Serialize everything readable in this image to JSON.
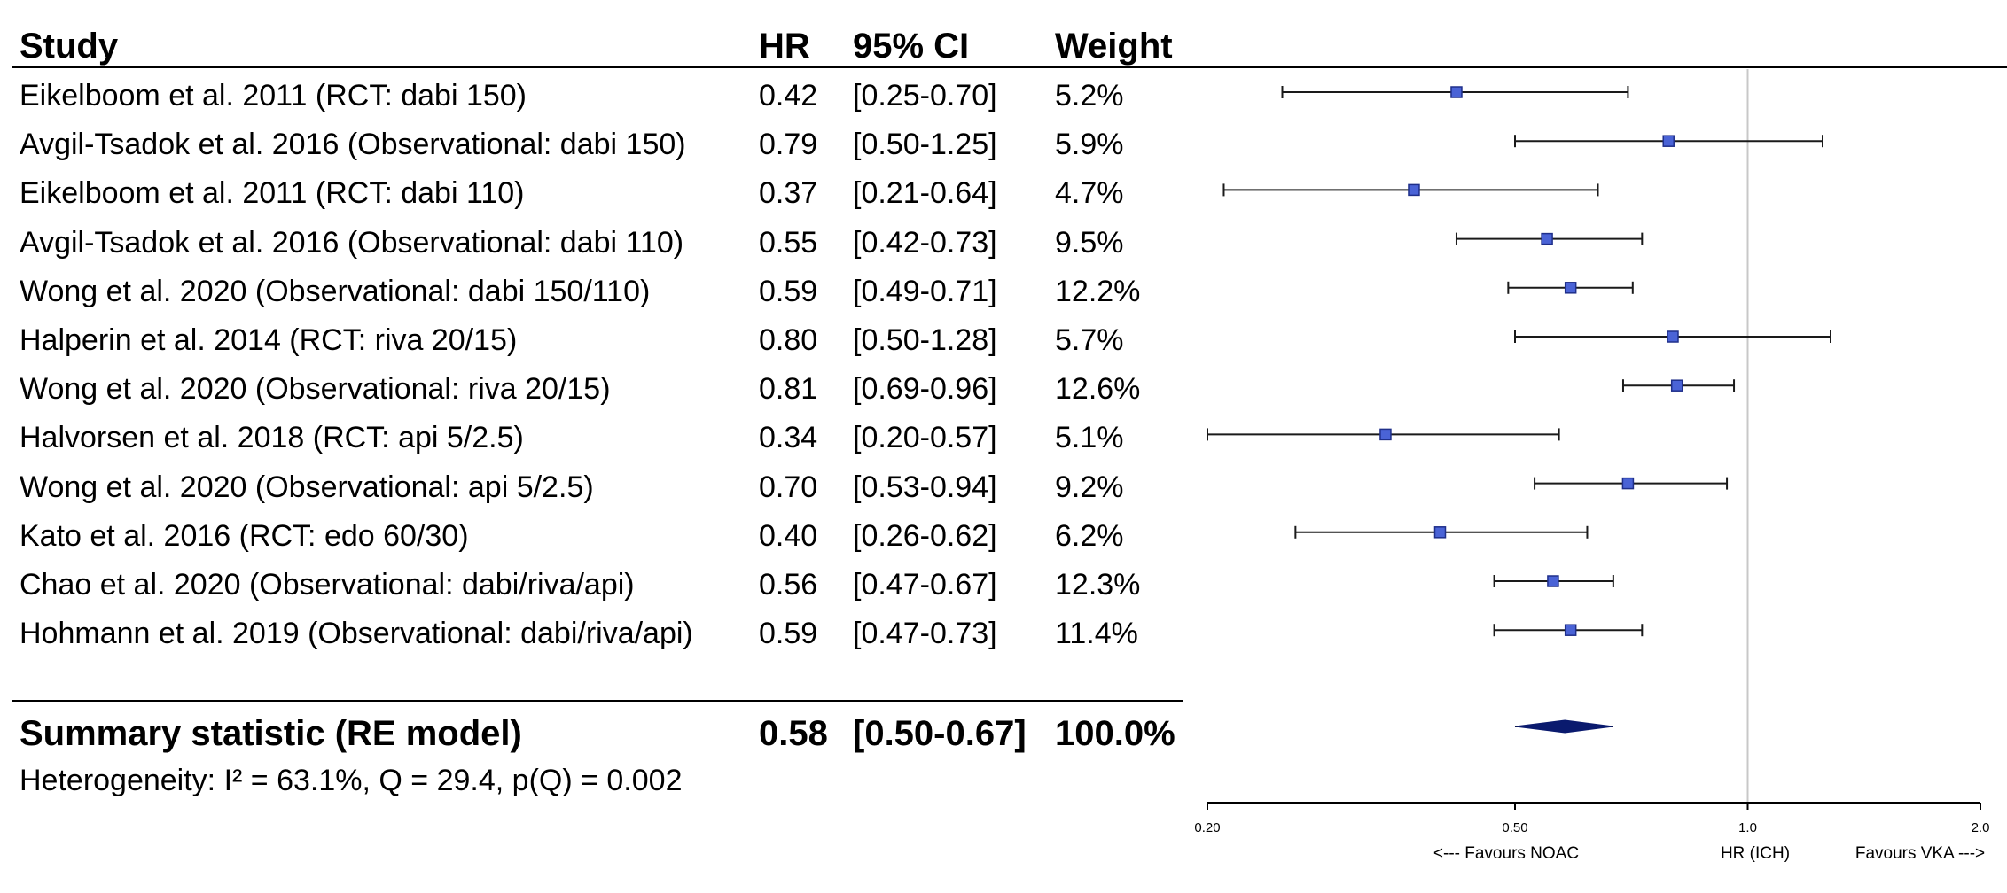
{
  "table": {
    "headers": {
      "study": "Study",
      "hr": "HR",
      "ci": "95% CI",
      "weight": "Weight"
    },
    "rows": [
      {
        "study": "Eikelboom et al. 2011 (RCT: dabi 150)",
        "hr": "0.42",
        "ci": "[0.25-0.70]",
        "weight": "5.2%"
      },
      {
        "study": "Avgil-Tsadok et al. 2016 (Observational: dabi 150)",
        "hr": "0.79",
        "ci": "[0.50-1.25]",
        "weight": "5.9%"
      },
      {
        "study": "Eikelboom et al. 2011 (RCT: dabi 110)",
        "hr": "0.37",
        "ci": "[0.21-0.64]",
        "weight": "4.7%"
      },
      {
        "study": "Avgil-Tsadok et al. 2016 (Observational: dabi 110)",
        "hr": "0.55",
        "ci": "[0.42-0.73]",
        "weight": "9.5%"
      },
      {
        "study": "Wong et al. 2020 (Observational: dabi 150/110)",
        "hr": "0.59",
        "ci": "[0.49-0.71]",
        "weight": "12.2%"
      },
      {
        "study": "Halperin et al. 2014 (RCT: riva 20/15)",
        "hr": "0.80",
        "ci": "[0.50-1.28]",
        "weight": "5.7%"
      },
      {
        "study": "Wong et al. 2020 (Observational: riva 20/15)",
        "hr": "0.81",
        "ci": "[0.69-0.96]",
        "weight": "12.6%"
      },
      {
        "study": "Halvorsen et al. 2018 (RCT: api 5/2.5)",
        "hr": "0.34",
        "ci": "[0.20-0.57]",
        "weight": "5.1%"
      },
      {
        "study": "Wong et al. 2020 (Observational: api 5/2.5)",
        "hr": "0.70",
        "ci": "[0.53-0.94]",
        "weight": "9.2%"
      },
      {
        "study": "Kato et al. 2016  (RCT: edo 60/30)",
        "hr": "0.40",
        "ci": "[0.26-0.62]",
        "weight": "6.2%"
      },
      {
        "study": "Chao et al. 2020 (Observational: dabi/riva/api)",
        "hr": "0.56",
        "ci": "[0.47-0.67]",
        "weight": "12.3%"
      },
      {
        "study": "Hohmann et al. 2019 (Observational: dabi/riva/api)",
        "hr": "0.59",
        "ci": "[0.47-0.73]",
        "weight": "11.4%"
      }
    ],
    "summary": {
      "label": "Summary statistic (RE model)",
      "hr": "0.58",
      "ci": "[0.50-0.67]",
      "weight": "100.0%"
    },
    "heterogeneity": "Heterogeneity: I² = 63.1%, Q = 29.4, p(Q) = 0.002"
  },
  "chart_data": {
    "type": "forest",
    "scale": "log",
    "xlim": [
      0.2,
      2.0
    ],
    "reference_line": 1.0,
    "ticks": [
      {
        "value": 0.2,
        "label": "0.20"
      },
      {
        "value": 0.5,
        "label": "0.50"
      },
      {
        "value": 1.0,
        "label": "1.0"
      },
      {
        "value": 2.0,
        "label": "2.0"
      }
    ],
    "axis_labels": {
      "left": "<--- Favours NOAC",
      "center": "HR (ICH)",
      "right": "Favours VKA --->"
    },
    "points": [
      {
        "hr": 0.42,
        "lo": 0.25,
        "hi": 0.7
      },
      {
        "hr": 0.79,
        "lo": 0.5,
        "hi": 1.25
      },
      {
        "hr": 0.37,
        "lo": 0.21,
        "hi": 0.64
      },
      {
        "hr": 0.55,
        "lo": 0.42,
        "hi": 0.73
      },
      {
        "hr": 0.59,
        "lo": 0.49,
        "hi": 0.71
      },
      {
        "hr": 0.8,
        "lo": 0.5,
        "hi": 1.28
      },
      {
        "hr": 0.81,
        "lo": 0.69,
        "hi": 0.96
      },
      {
        "hr": 0.34,
        "lo": 0.2,
        "hi": 0.57
      },
      {
        "hr": 0.7,
        "lo": 0.53,
        "hi": 0.94
      },
      {
        "hr": 0.4,
        "lo": 0.26,
        "hi": 0.62
      },
      {
        "hr": 0.56,
        "lo": 0.47,
        "hi": 0.67
      },
      {
        "hr": 0.59,
        "lo": 0.47,
        "hi": 0.73
      }
    ],
    "summary": {
      "hr": 0.58,
      "lo": 0.5,
      "hi": 0.67
    },
    "colors": {
      "marker": "#4a63d6",
      "marker_edge": "#1f2f8a",
      "summary": "#0a1a6e",
      "reference": "#c8c8c8"
    }
  }
}
